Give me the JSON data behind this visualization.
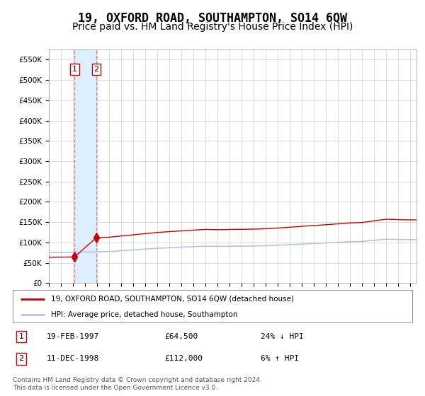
{
  "title": "19, OXFORD ROAD, SOUTHAMPTON, SO14 6QW",
  "subtitle": "Price paid vs. HM Land Registry's House Price Index (HPI)",
  "title_fontsize": 12,
  "subtitle_fontsize": 10,
  "ylim": [
    0,
    575000
  ],
  "yticks": [
    0,
    50000,
    100000,
    150000,
    200000,
    250000,
    300000,
    350000,
    400000,
    450000,
    500000,
    550000
  ],
  "ytick_labels": [
    "£0",
    "£50K",
    "£100K",
    "£150K",
    "£200K",
    "£250K",
    "£300K",
    "£350K",
    "£400K",
    "£450K",
    "£500K",
    "£550K"
  ],
  "x_start_year": 1995.0,
  "x_end_year": 2025.5,
  "sale1_date": 1997.13,
  "sale1_price": 64500,
  "sale2_date": 1998.94,
  "sale2_price": 112000,
  "sale1_label": "1",
  "sale2_label": "2",
  "hpi_color": "#aec6e8",
  "property_color": "#cc0000",
  "sale_marker_color": "#cc0000",
  "vline_color": "#e88080",
  "vspan_color": "#ddeeff",
  "grid_color": "#cccccc",
  "background_color": "#ffffff",
  "legend_property": "19, OXFORD ROAD, SOUTHAMPTON, SO14 6QW (detached house)",
  "legend_hpi": "HPI: Average price, detached house, Southampton",
  "table_row1": [
    "1",
    "19-FEB-1997",
    "£64,500",
    "24% ↓ HPI"
  ],
  "table_row2": [
    "2",
    "11-DEC-1998",
    "£112,000",
    "6% ↑ HPI"
  ],
  "footnote": "Contains HM Land Registry data © Crown copyright and database right 2024.\nThis data is licensed under the Open Government Licence v3.0."
}
